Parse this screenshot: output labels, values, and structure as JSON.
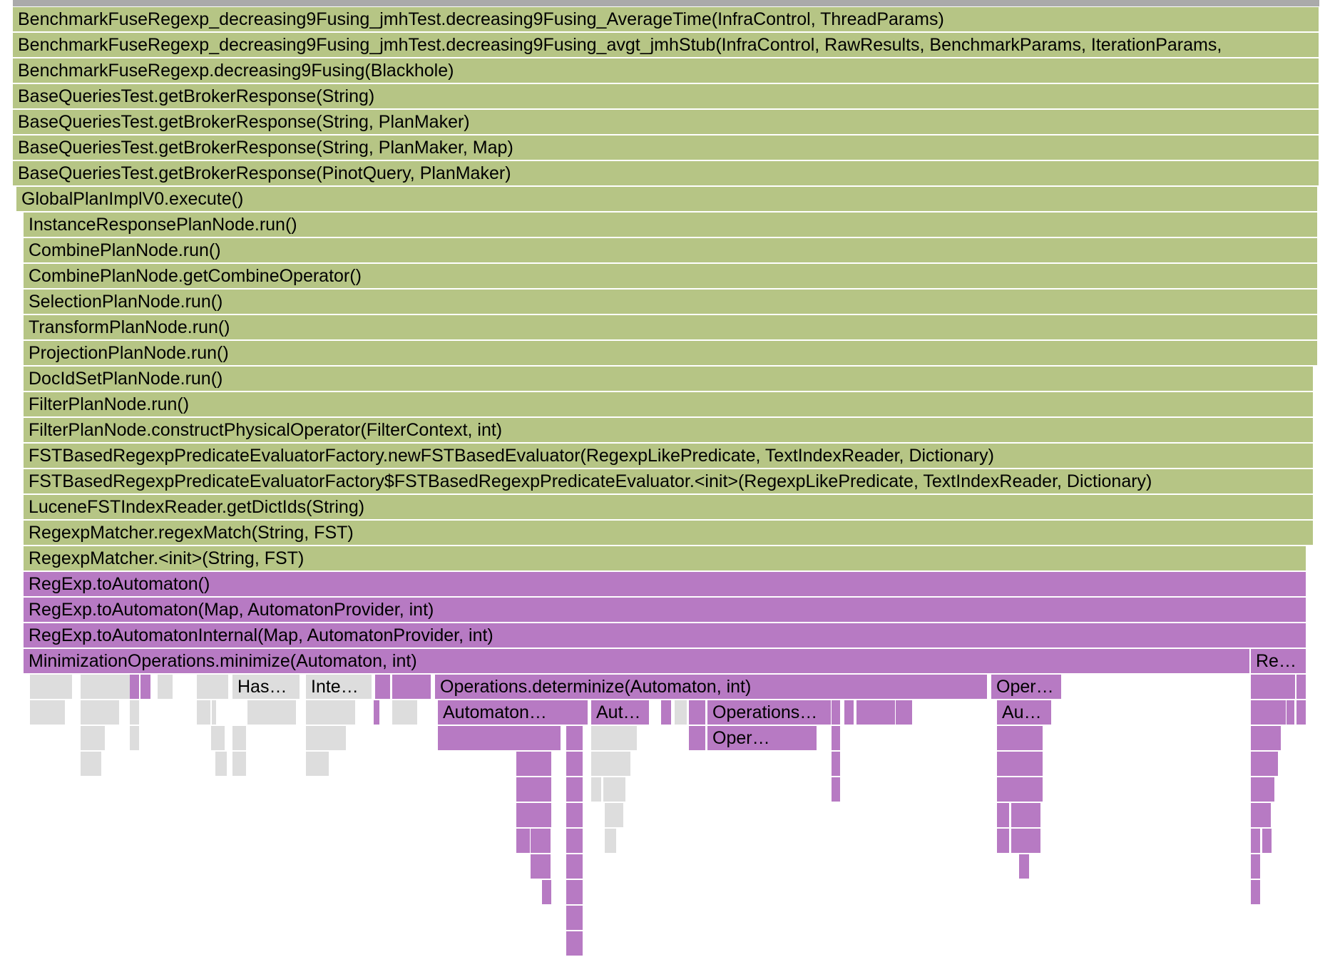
{
  "colors": {
    "java": "#b6c585",
    "automaton": "#b77ac3",
    "other": "#dddddd"
  },
  "frames": [
    {
      "label": "BenchmarkFuseRegexp_decreasing9Fusing_jmhTest.decreasing9Fusing_AverageTime(InfraControl, ThreadParams)",
      "kind": "java"
    },
    {
      "label": "BenchmarkFuseRegexp_decreasing9Fusing_jmhTest.decreasing9Fusing_avgt_jmhStub(InfraControl, RawResults, BenchmarkParams, IterationParams,",
      "kind": "java"
    },
    {
      "label": "BenchmarkFuseRegexp.decreasing9Fusing(Blackhole)",
      "kind": "java"
    },
    {
      "label": "BaseQueriesTest.getBrokerResponse(String)",
      "kind": "java"
    },
    {
      "label": "BaseQueriesTest.getBrokerResponse(String, PlanMaker)",
      "kind": "java"
    },
    {
      "label": "BaseQueriesTest.getBrokerResponse(String, PlanMaker, Map)",
      "kind": "java"
    },
    {
      "label": "BaseQueriesTest.getBrokerResponse(PinotQuery, PlanMaker)",
      "kind": "java"
    },
    {
      "label": "GlobalPlanImplV0.execute()",
      "kind": "java"
    },
    {
      "label": "InstanceResponsePlanNode.run()",
      "kind": "java"
    },
    {
      "label": "CombinePlanNode.run()",
      "kind": "java"
    },
    {
      "label": "CombinePlanNode.getCombineOperator()",
      "kind": "java"
    },
    {
      "label": "SelectionPlanNode.run()",
      "kind": "java"
    },
    {
      "label": "TransformPlanNode.run()",
      "kind": "java"
    },
    {
      "label": "ProjectionPlanNode.run()",
      "kind": "java"
    },
    {
      "label": "DocIdSetPlanNode.run()",
      "kind": "java"
    },
    {
      "label": "FilterPlanNode.run()",
      "kind": "java"
    },
    {
      "label": "FilterPlanNode.constructPhysicalOperator(FilterContext, int)",
      "kind": "java"
    },
    {
      "label": "FSTBasedRegexpPredicateEvaluatorFactory.newFSTBasedEvaluator(RegexpLikePredicate, TextIndexReader, Dictionary)",
      "kind": "java"
    },
    {
      "label": "FSTBasedRegexpPredicateEvaluatorFactory$FSTBasedRegexpPredicateEvaluator.<init>(RegexpLikePredicate, TextIndexReader, Dictionary)",
      "kind": "java"
    },
    {
      "label": "LuceneFSTIndexReader.getDictIds(String)",
      "kind": "java"
    },
    {
      "label": "RegexpMatcher.regexMatch(String, FST)",
      "kind": "java"
    },
    {
      "label": "RegexpMatcher.<init>(String, FST)",
      "kind": "java"
    },
    {
      "label": "RegExp.toAutomaton()",
      "kind": "automaton"
    },
    {
      "label": "RegExp.toAutomaton(Map, AutomatonProvider, int)",
      "kind": "automaton"
    },
    {
      "label": "RegExp.toAutomatonInternal(Map, AutomatonProvider, int)",
      "kind": "automaton"
    },
    {
      "label": "MinimizationOperations.minimize(Automaton, int)",
      "kind": "automaton"
    },
    {
      "label": "Re…",
      "kind": "automaton"
    },
    {
      "label": "",
      "kind": "other"
    },
    {
      "label": "",
      "kind": "other"
    },
    {
      "label": "",
      "kind": "automaton"
    },
    {
      "label": "",
      "kind": "automaton"
    },
    {
      "label": "",
      "kind": "other"
    },
    {
      "label": "",
      "kind": "other"
    },
    {
      "label": "",
      "kind": "other"
    },
    {
      "label": "Has…",
      "kind": "other"
    },
    {
      "label": "Inte…",
      "kind": "other"
    },
    {
      "label": "",
      "kind": "automaton"
    },
    {
      "label": "",
      "kind": "automaton"
    },
    {
      "label": "Operations.determinize(Automaton, int)",
      "kind": "automaton"
    },
    {
      "label": "Oper…",
      "kind": "automaton"
    },
    {
      "label": "",
      "kind": "automaton"
    },
    {
      "label": "",
      "kind": "automaton"
    },
    {
      "label": "",
      "kind": "other"
    },
    {
      "label": "",
      "kind": "other"
    },
    {
      "label": "",
      "kind": "other"
    },
    {
      "label": "",
      "kind": "other"
    },
    {
      "label": "",
      "kind": "other"
    },
    {
      "label": "",
      "kind": "other"
    },
    {
      "label": "",
      "kind": "other"
    },
    {
      "label": "",
      "kind": "automaton"
    },
    {
      "label": "",
      "kind": "other"
    },
    {
      "label": "Automaton…",
      "kind": "automaton"
    },
    {
      "label": "Aut…",
      "kind": "automaton"
    },
    {
      "label": "",
      "kind": "automaton"
    },
    {
      "label": "",
      "kind": "other"
    },
    {
      "label": "",
      "kind": "automaton"
    },
    {
      "label": "Operations…",
      "kind": "automaton"
    },
    {
      "label": "",
      "kind": "automaton"
    },
    {
      "label": "",
      "kind": "automaton"
    },
    {
      "label": "",
      "kind": "automaton"
    },
    {
      "label": "",
      "kind": "automaton"
    },
    {
      "label": "Au…",
      "kind": "automaton"
    },
    {
      "label": "",
      "kind": "automaton"
    },
    {
      "label": "",
      "kind": "automaton"
    },
    {
      "label": "",
      "kind": "automaton"
    },
    {
      "label": "",
      "kind": "other"
    },
    {
      "label": "",
      "kind": "other"
    },
    {
      "label": "",
      "kind": "other"
    },
    {
      "label": "",
      "kind": "other"
    },
    {
      "label": "",
      "kind": "other"
    },
    {
      "label": "",
      "kind": "automaton"
    },
    {
      "label": "",
      "kind": "automaton"
    },
    {
      "label": "",
      "kind": "automaton"
    },
    {
      "label": "",
      "kind": "other"
    },
    {
      "label": "",
      "kind": "automaton"
    },
    {
      "label": "Oper…",
      "kind": "automaton"
    },
    {
      "label": "",
      "kind": "automaton"
    },
    {
      "label": "",
      "kind": "automaton"
    },
    {
      "label": "",
      "kind": "automaton"
    },
    {
      "label": "",
      "kind": "automaton"
    },
    {
      "label": "",
      "kind": "other"
    },
    {
      "label": "",
      "kind": "other"
    },
    {
      "label": "",
      "kind": "other"
    },
    {
      "label": "",
      "kind": "other"
    },
    {
      "label": "",
      "kind": "automaton"
    },
    {
      "label": "",
      "kind": "automaton"
    },
    {
      "label": "",
      "kind": "other"
    },
    {
      "label": "",
      "kind": "automaton"
    },
    {
      "label": "",
      "kind": "automaton"
    },
    {
      "label": "",
      "kind": "automaton"
    },
    {
      "label": "",
      "kind": "automaton"
    },
    {
      "label": "",
      "kind": "automaton"
    },
    {
      "label": "",
      "kind": "other"
    },
    {
      "label": "",
      "kind": "other"
    },
    {
      "label": "",
      "kind": "automaton"
    },
    {
      "label": "",
      "kind": "automaton"
    },
    {
      "label": "",
      "kind": "automaton"
    },
    {
      "label": "",
      "kind": "automaton"
    },
    {
      "label": "",
      "kind": "automaton"
    },
    {
      "label": "",
      "kind": "other"
    },
    {
      "label": "",
      "kind": "automaton"
    },
    {
      "label": "",
      "kind": "automaton"
    },
    {
      "label": "",
      "kind": "automaton"
    },
    {
      "label": "",
      "kind": "automaton"
    },
    {
      "label": "",
      "kind": "automaton"
    },
    {
      "label": "",
      "kind": "automaton"
    },
    {
      "label": "",
      "kind": "automaton"
    },
    {
      "label": "",
      "kind": "other"
    },
    {
      "label": "",
      "kind": "automaton"
    },
    {
      "label": "",
      "kind": "automaton"
    },
    {
      "label": "",
      "kind": "automaton"
    },
    {
      "label": "",
      "kind": "automaton"
    },
    {
      "label": "",
      "kind": "automaton"
    },
    {
      "label": "",
      "kind": "automaton"
    },
    {
      "label": "",
      "kind": "automaton"
    },
    {
      "label": "",
      "kind": "automaton"
    },
    {
      "label": "",
      "kind": "automaton"
    },
    {
      "label": "",
      "kind": "automaton"
    },
    {
      "label": "",
      "kind": "automaton"
    },
    {
      "label": "",
      "kind": "automaton"
    },
    {
      "label": "",
      "kind": "automaton"
    },
    {
      "label": "",
      "kind": "automaton"
    }
  ]
}
